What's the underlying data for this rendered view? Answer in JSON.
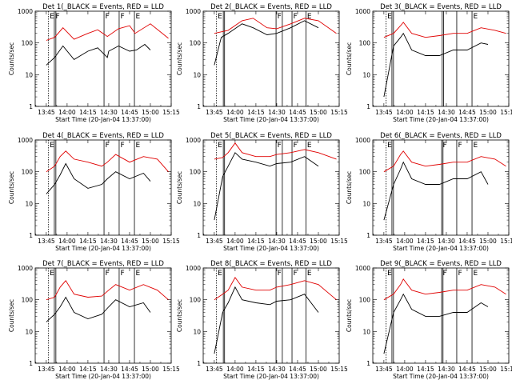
{
  "chart_data": [
    {
      "type": "line",
      "title": "Det 1(_BLACK = Events, RED = LLD",
      "xlabel": "Start Time (20-Jan-04 13:37:00)",
      "ylabel": "Counts/sec",
      "yscale": "log",
      "ylim": [
        1,
        1000
      ],
      "xticks": [
        "13:45",
        "14:00",
        "14:15",
        "14:30",
        "14:45",
        "15:00",
        "15:15"
      ],
      "yticks": [
        "1",
        "10",
        "100",
        "1000"
      ],
      "series": [
        {
          "name": "Events",
          "color": "#000000",
          "x": [
            0,
            6,
            7,
            12,
            20,
            30,
            37,
            44,
            45,
            52,
            60,
            65,
            71,
            75
          ],
          "values": [
            20,
            35,
            40,
            80,
            30,
            55,
            70,
            35,
            55,
            80,
            55,
            60,
            90,
            60
          ]
        },
        {
          "name": "LLD",
          "color": "#e00000",
          "x": [
            0,
            6,
            12,
            20,
            30,
            37,
            44,
            52,
            60,
            64,
            75,
            88
          ],
          "values": [
            120,
            150,
            300,
            130,
            200,
            260,
            160,
            280,
            350,
            200,
            400,
            140
          ]
        }
      ],
      "markers": [
        {
          "x": 1.6,
          "style": "dashed",
          "label": "E"
        },
        {
          "x": 5.8,
          "style": "solid",
          "label": "F"
        },
        {
          "x": 6.9,
          "style": "solid"
        },
        {
          "x": 41.6,
          "style": "solid",
          "label": "F"
        },
        {
          "x": 52.5,
          "style": "solid",
          "label": "F"
        },
        {
          "x": 63.5,
          "style": "solid",
          "label": "E"
        }
      ]
    },
    {
      "type": "line",
      "title": "Det 2(_BLACK = Events, RED = LLD",
      "xlabel": "Start Time (20-Jan-04 13:37:00)",
      "ylabel": "Counts/sec",
      "yscale": "log",
      "ylim": [
        1,
        1000
      ],
      "xticks": [
        "13:45",
        "14:00",
        "14:15",
        "14:30",
        "14:45",
        "15:00",
        "15:15"
      ],
      "yticks": [
        "1",
        "10",
        "100",
        "1000"
      ],
      "series": [
        {
          "name": "Events",
          "color": "#000000",
          "x": [
            0,
            4,
            5,
            10,
            20,
            28,
            38,
            45,
            55,
            65,
            75
          ],
          "values": [
            20,
            100,
            150,
            200,
            400,
            300,
            180,
            200,
            300,
            500,
            300
          ]
        },
        {
          "name": "LLD",
          "color": "#e00000",
          "x": [
            0,
            10,
            20,
            28,
            38,
            45,
            55,
            65,
            75,
            88
          ],
          "values": [
            200,
            250,
            500,
            600,
            300,
            280,
            400,
            600,
            500,
            200
          ]
        }
      ],
      "markers": [
        {
          "x": 1.6,
          "style": "dashed",
          "label": "E"
        },
        {
          "x": 6.5,
          "style": "solid"
        },
        {
          "x": 7.4,
          "style": "solid"
        },
        {
          "x": 44.5,
          "style": "solid",
          "label": "F"
        },
        {
          "x": 49.0,
          "style": "solid"
        },
        {
          "x": 56.0,
          "style": "solid",
          "label": "F"
        },
        {
          "x": 66.0,
          "style": "solid",
          "label": "E"
        }
      ]
    },
    {
      "type": "line",
      "title": "Det 3(_BLACK = Events, RED = LLD",
      "xlabel": "Start Time (20-Jan-04 13:37:00)",
      "ylabel": "Counts/sec",
      "yscale": "log",
      "ylim": [
        1,
        1000
      ],
      "xticks": [
        "13:45",
        "14:00",
        "14:15",
        "14:30",
        "14:45",
        "15:00",
        "15:15"
      ],
      "yticks": [
        "1",
        "10",
        "100",
        "1000"
      ],
      "series": [
        {
          "name": "Events",
          "color": "#000000",
          "x": [
            0,
            7,
            12,
            14,
            20,
            30,
            40,
            50,
            60,
            70,
            75
          ],
          "values": [
            2,
            80,
            150,
            200,
            60,
            40,
            40,
            60,
            60,
            100,
            90
          ]
        },
        {
          "name": "LLD",
          "color": "#e00000",
          "x": [
            0,
            7,
            12,
            14,
            20,
            30,
            40,
            50,
            60,
            70,
            80,
            88
          ],
          "values": [
            150,
            200,
            350,
            450,
            200,
            150,
            170,
            200,
            200,
            300,
            250,
            200
          ]
        }
      ],
      "markers": [
        {
          "x": 1.6,
          "style": "dashed",
          "label": "E"
        },
        {
          "x": 5.8,
          "style": "solid"
        },
        {
          "x": 6.9,
          "style": "solid"
        },
        {
          "x": 42.0,
          "style": "solid"
        },
        {
          "x": 43.0,
          "style": "solid"
        },
        {
          "x": 52.5,
          "style": "solid"
        },
        {
          "x": 63.5,
          "style": "solid",
          "label": "E"
        }
      ]
    },
    {
      "type": "line",
      "title": "Det 4(_BLACK = Events, RED = LLD",
      "xlabel": "Start Time (20-Jan-04 13:37:00)",
      "ylabel": "Counts/sec",
      "yscale": "log",
      "ylim": [
        1,
        1000
      ],
      "xticks": [
        "13:45",
        "14:00",
        "14:15",
        "14:30",
        "14:45",
        "15:00",
        "15:15"
      ],
      "yticks": [
        "1",
        "10",
        "100",
        "1000"
      ],
      "series": [
        {
          "name": "Events",
          "color": "#000000",
          "x": [
            0,
            6,
            10,
            14,
            20,
            30,
            40,
            44,
            50,
            60,
            70,
            75
          ],
          "values": [
            20,
            40,
            80,
            180,
            60,
            30,
            40,
            60,
            100,
            60,
            90,
            50
          ]
        },
        {
          "name": "LLD",
          "color": "#e00000",
          "x": [
            0,
            6,
            10,
            14,
            20,
            30,
            40,
            44,
            50,
            60,
            70,
            80,
            88
          ],
          "values": [
            100,
            150,
            300,
            450,
            250,
            200,
            150,
            200,
            350,
            200,
            300,
            250,
            100
          ]
        }
      ],
      "markers": [
        {
          "x": 1.6,
          "style": "dashed",
          "label": "E"
        },
        {
          "x": 5.8,
          "style": "solid"
        },
        {
          "x": 6.9,
          "style": "solid"
        },
        {
          "x": 41.6,
          "style": "solid",
          "label": "F"
        },
        {
          "x": 52.5,
          "style": "solid",
          "label": "F"
        },
        {
          "x": 63.5,
          "style": "solid",
          "label": "E"
        }
      ]
    },
    {
      "type": "line",
      "title": "Det 5(_BLACK = Events, RED = LLD",
      "xlabel": "Start Time (20-Jan-04 13:37:00)",
      "ylabel": "Counts/sec",
      "yscale": "log",
      "ylim": [
        1,
        1000
      ],
      "xticks": [
        "13:45",
        "14:00",
        "14:15",
        "14:30",
        "14:45",
        "15:00",
        "15:15"
      ],
      "yticks": [
        "1",
        "10",
        "100",
        "1000"
      ],
      "series": [
        {
          "name": "Events",
          "color": "#000000",
          "x": [
            0,
            6,
            10,
            15,
            20,
            30,
            40,
            45,
            55,
            65,
            75
          ],
          "values": [
            3,
            70,
            150,
            400,
            250,
            200,
            150,
            180,
            200,
            300,
            150
          ]
        },
        {
          "name": "LLD",
          "color": "#e00000",
          "x": [
            0,
            6,
            10,
            15,
            20,
            30,
            40,
            45,
            55,
            65,
            75,
            88
          ],
          "values": [
            250,
            280,
            400,
            800,
            400,
            300,
            300,
            350,
            400,
            500,
            400,
            250
          ]
        }
      ],
      "markers": [
        {
          "x": 1.6,
          "style": "dashed",
          "label": "E"
        },
        {
          "x": 6.5,
          "style": "solid"
        },
        {
          "x": 7.4,
          "style": "solid"
        },
        {
          "x": 44.5,
          "style": "solid",
          "label": "F"
        },
        {
          "x": 49.0,
          "style": "solid"
        },
        {
          "x": 56.0,
          "style": "solid",
          "label": "F"
        },
        {
          "x": 66.0,
          "style": "solid",
          "label": "E"
        }
      ]
    },
    {
      "type": "line",
      "title": "Det 6(_BLACK = Events, RED = LLD",
      "xlabel": "Start Time (20-Jan-04 13:37:00)",
      "ylabel": "Counts/sec",
      "yscale": "log",
      "ylim": [
        1,
        1000
      ],
      "xticks": [
        "13:45",
        "14:00",
        "14:15",
        "14:30",
        "14:45",
        "15:00",
        "15:15"
      ],
      "yticks": [
        "1",
        "10",
        "100",
        "1000"
      ],
      "series": [
        {
          "name": "Events",
          "color": "#000000",
          "x": [
            0,
            7,
            12,
            14,
            20,
            30,
            40,
            50,
            60,
            70,
            75
          ],
          "values": [
            3,
            40,
            120,
            200,
            60,
            40,
            40,
            60,
            60,
            100,
            40
          ]
        },
        {
          "name": "LLD",
          "color": "#e00000",
          "x": [
            0,
            7,
            12,
            14,
            20,
            30,
            40,
            50,
            60,
            70,
            80,
            88
          ],
          "values": [
            100,
            150,
            350,
            450,
            200,
            150,
            170,
            200,
            200,
            300,
            250,
            150
          ]
        }
      ],
      "markers": [
        {
          "x": 1.6,
          "style": "dashed",
          "label": "E"
        },
        {
          "x": 5.8,
          "style": "solid"
        },
        {
          "x": 6.9,
          "style": "solid"
        },
        {
          "x": 41.6,
          "style": "solid",
          "label": "F"
        },
        {
          "x": 42.6,
          "style": "solid"
        },
        {
          "x": 52.5,
          "style": "solid",
          "label": "F"
        },
        {
          "x": 63.5,
          "style": "solid",
          "label": "E"
        }
      ]
    },
    {
      "type": "line",
      "title": "Det 7(_BLACK = Events, RED = LLD",
      "xlabel": "Start Time (20-Jan-04 13:37:00)",
      "ylabel": "Counts/sec",
      "yscale": "log",
      "ylim": [
        1,
        1000
      ],
      "xticks": [
        "13:45",
        "14:00",
        "14:15",
        "14:30",
        "14:45",
        "15:00",
        "15:15"
      ],
      "yticks": [
        "1",
        "10",
        "100",
        "1000"
      ],
      "series": [
        {
          "name": "Events",
          "color": "#000000",
          "x": [
            0,
            6,
            10,
            14,
            20,
            30,
            40,
            45,
            50,
            60,
            70,
            75
          ],
          "values": [
            20,
            35,
            60,
            120,
            40,
            25,
            35,
            60,
            100,
            60,
            80,
            40
          ]
        },
        {
          "name": "LLD",
          "color": "#e00000",
          "x": [
            0,
            6,
            10,
            14,
            20,
            30,
            40,
            45,
            50,
            60,
            70,
            80,
            88
          ],
          "values": [
            100,
            120,
            250,
            400,
            150,
            120,
            130,
            200,
            300,
            200,
            300,
            200,
            100
          ]
        }
      ],
      "markers": [
        {
          "x": 1.6,
          "style": "dashed",
          "label": "E"
        },
        {
          "x": 5.8,
          "style": "solid"
        },
        {
          "x": 6.9,
          "style": "solid"
        },
        {
          "x": 41.6,
          "style": "solid",
          "label": "F"
        },
        {
          "x": 52.5,
          "style": "solid",
          "label": "F"
        },
        {
          "x": 63.5,
          "style": "solid",
          "label": "E"
        }
      ]
    },
    {
      "type": "line",
      "title": "Det 8(_BLACK = Events, RED = LLD",
      "xlabel": "Start Time (20-Jan-04 13:37:00)",
      "ylabel": "Counts/sec",
      "yscale": "log",
      "ylim": [
        1,
        1000
      ],
      "xticks": [
        "13:45",
        "14:00",
        "14:15",
        "14:30",
        "14:45",
        "15:00",
        "15:15"
      ],
      "yticks": [
        "1",
        "10",
        "100",
        "1000"
      ],
      "series": [
        {
          "name": "Events",
          "color": "#000000",
          "x": [
            0,
            6,
            10,
            15,
            20,
            30,
            40,
            45,
            55,
            65,
            75
          ],
          "values": [
            2,
            40,
            80,
            250,
            100,
            80,
            70,
            90,
            100,
            150,
            40
          ]
        },
        {
          "name": "LLD",
          "color": "#e00000",
          "x": [
            0,
            6,
            10,
            15,
            20,
            30,
            40,
            45,
            55,
            65,
            75,
            88
          ],
          "values": [
            100,
            150,
            200,
            500,
            250,
            200,
            200,
            250,
            300,
            400,
            300,
            100
          ]
        }
      ],
      "markers": [
        {
          "x": 1.6,
          "style": "dashed",
          "label": "E"
        },
        {
          "x": 6.5,
          "style": "solid"
        },
        {
          "x": 7.4,
          "style": "solid"
        },
        {
          "x": 44.5,
          "style": "solid",
          "label": "F"
        },
        {
          "x": 49.0,
          "style": "solid"
        },
        {
          "x": 56.0,
          "style": "solid",
          "label": "F"
        },
        {
          "x": 66.0,
          "style": "solid",
          "label": "E"
        }
      ]
    },
    {
      "type": "line",
      "title": "Det 9(_BLACK = Events, RED = LLD",
      "xlabel": "Start Time (20-Jan-04 13:37:00)",
      "ylabel": "Counts/sec",
      "yscale": "log",
      "ylim": [
        1,
        1000
      ],
      "xticks": [
        "13:45",
        "14:00",
        "14:15",
        "14:30",
        "14:45",
        "15:00",
        "15:15"
      ],
      "yticks": [
        "1",
        "10",
        "100",
        "1000"
      ],
      "series": [
        {
          "name": "Events",
          "color": "#000000",
          "x": [
            0,
            7,
            12,
            14,
            20,
            30,
            40,
            50,
            60,
            70,
            75
          ],
          "values": [
            2,
            40,
            100,
            150,
            50,
            30,
            30,
            40,
            40,
            80,
            60
          ]
        },
        {
          "name": "LLD",
          "color": "#e00000",
          "x": [
            0,
            7,
            12,
            14,
            20,
            30,
            40,
            50,
            60,
            70,
            80,
            88
          ],
          "values": [
            100,
            150,
            300,
            450,
            200,
            150,
            170,
            200,
            200,
            300,
            250,
            150
          ]
        }
      ],
      "markers": [
        {
          "x": 1.6,
          "style": "dashed",
          "label": "E"
        },
        {
          "x": 5.8,
          "style": "solid"
        },
        {
          "x": 6.9,
          "style": "solid"
        },
        {
          "x": 41.6,
          "style": "solid",
          "label": "F"
        },
        {
          "x": 42.6,
          "style": "solid"
        },
        {
          "x": 52.5,
          "style": "solid",
          "label": "F"
        },
        {
          "x": 63.5,
          "style": "solid",
          "label": "E"
        }
      ]
    }
  ]
}
